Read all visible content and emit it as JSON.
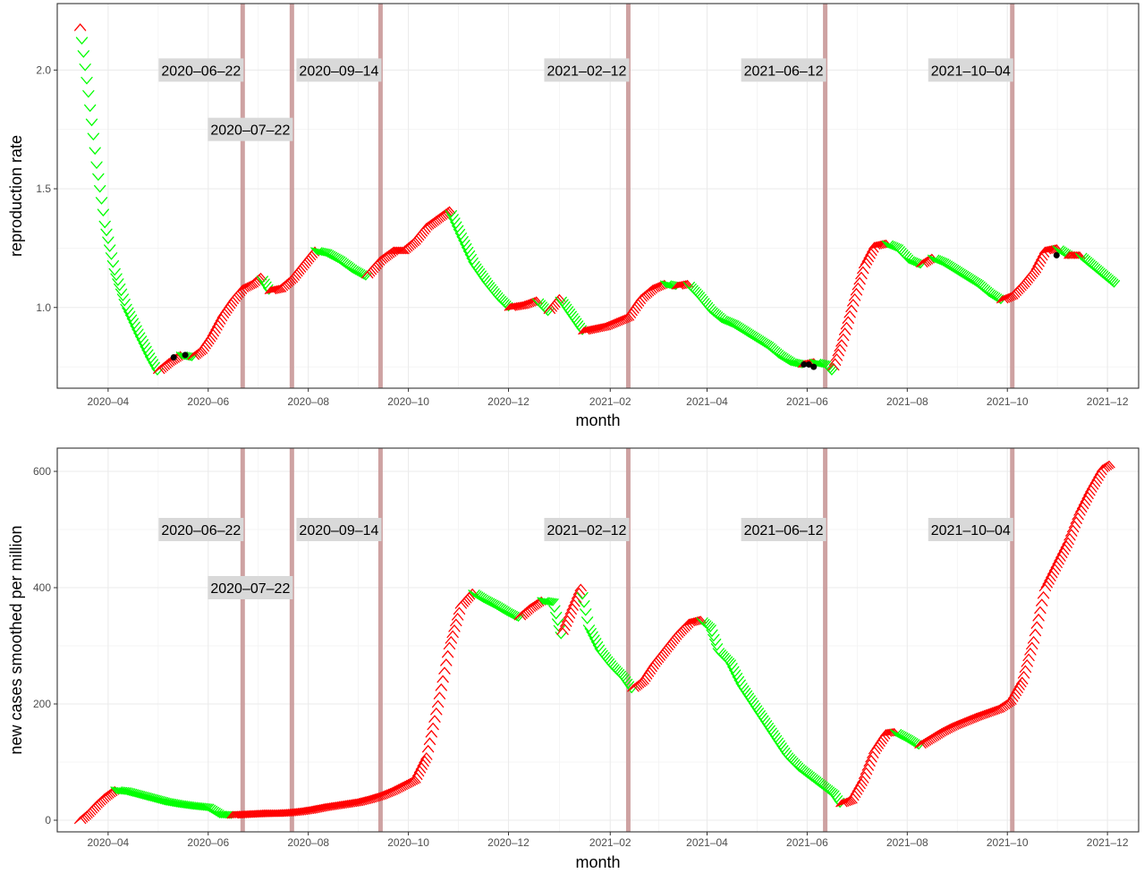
{
  "chart_data": [
    {
      "type": "line",
      "xlabel": "month",
      "ylabel": "reproduction rate",
      "ylim": [
        0.66,
        2.28
      ],
      "yticks": [
        1.0,
        1.5,
        2.0
      ],
      "ytick_labels": [
        "1.0",
        "1.5",
        "2.0"
      ],
      "xlim": [
        "2020-03-01",
        "2021-12-20"
      ],
      "xticks": [
        "2020-04-01",
        "2020-06-01",
        "2020-08-01",
        "2020-10-01",
        "2020-12-01",
        "2021-02-01",
        "2021-04-01",
        "2021-06-01",
        "2021-08-01",
        "2021-10-01",
        "2021-12-01"
      ],
      "xtick_labels": [
        "2020–04",
        "2020–06",
        "2020–08",
        "2020–10",
        "2020–12",
        "2021–02",
        "2021–04",
        "2021–06",
        "2021–08",
        "2021–10",
        "2021–12"
      ],
      "grid": true,
      "marker_legend": {
        "rising": "⋀ red",
        "falling": "⋁ green"
      },
      "series": [
        {
          "points": [
            [
              "2020-03-15",
              2.18
            ],
            [
              "2020-03-20",
              1.9
            ],
            [
              "2020-03-25",
              1.6
            ],
            [
              "2020-03-30",
              1.35
            ],
            [
              "2020-04-05",
              1.15
            ],
            [
              "2020-04-12",
              1.0
            ],
            [
              "2020-04-20",
              0.88
            ],
            [
              "2020-04-27",
              0.78
            ],
            [
              "2020-05-01",
              0.73
            ],
            [
              "2020-05-08",
              0.77
            ],
            [
              "2020-05-15",
              0.8
            ],
            [
              "2020-05-22",
              0.79
            ],
            [
              "2020-05-28",
              0.82
            ],
            [
              "2020-06-03",
              0.88
            ],
            [
              "2020-06-10",
              0.97
            ],
            [
              "2020-06-17",
              1.04
            ],
            [
              "2020-06-22",
              1.08
            ],
            [
              "2020-06-28",
              1.1
            ],
            [
              "2020-07-03",
              1.13
            ],
            [
              "2020-07-08",
              1.07
            ],
            [
              "2020-07-15",
              1.08
            ],
            [
              "2020-07-22",
              1.12
            ],
            [
              "2020-07-29",
              1.18
            ],
            [
              "2020-08-05",
              1.24
            ],
            [
              "2020-08-12",
              1.23
            ],
            [
              "2020-08-20",
              1.2
            ],
            [
              "2020-08-28",
              1.16
            ],
            [
              "2020-09-05",
              1.13
            ],
            [
              "2020-09-14",
              1.2
            ],
            [
              "2020-09-22",
              1.24
            ],
            [
              "2020-09-28",
              1.24
            ],
            [
              "2020-10-05",
              1.28
            ],
            [
              "2020-10-12",
              1.34
            ],
            [
              "2020-10-20",
              1.38
            ],
            [
              "2020-10-26",
              1.41
            ],
            [
              "2020-11-02",
              1.3
            ],
            [
              "2020-11-10",
              1.18
            ],
            [
              "2020-11-18",
              1.1
            ],
            [
              "2020-11-25",
              1.04
            ],
            [
              "2020-12-01",
              1.0
            ],
            [
              "2020-12-10",
              1.01
            ],
            [
              "2020-12-18",
              1.03
            ],
            [
              "2020-12-25",
              0.98
            ],
            [
              "2021-01-01",
              1.04
            ],
            [
              "2021-01-08",
              0.97
            ],
            [
              "2021-01-15",
              0.9
            ],
            [
              "2021-01-22",
              0.91
            ],
            [
              "2021-01-29",
              0.92
            ],
            [
              "2021-02-05",
              0.94
            ],
            [
              "2021-02-12",
              0.96
            ],
            [
              "2021-02-20",
              1.04
            ],
            [
              "2021-02-27",
              1.08
            ],
            [
              "2021-03-06",
              1.1
            ],
            [
              "2021-03-13",
              1.09
            ],
            [
              "2021-03-20",
              1.1
            ],
            [
              "2021-03-27",
              1.05
            ],
            [
              "2021-04-03",
              0.99
            ],
            [
              "2021-04-10",
              0.95
            ],
            [
              "2021-04-17",
              0.93
            ],
            [
              "2021-04-24",
              0.9
            ],
            [
              "2021-05-01",
              0.87
            ],
            [
              "2021-05-08",
              0.84
            ],
            [
              "2021-05-15",
              0.8
            ],
            [
              "2021-05-22",
              0.77
            ],
            [
              "2021-05-29",
              0.76
            ],
            [
              "2021-06-05",
              0.77
            ],
            [
              "2021-06-12",
              0.76
            ],
            [
              "2021-06-16",
              0.73
            ],
            [
              "2021-06-22",
              0.85
            ],
            [
              "2021-06-29",
              1.02
            ],
            [
              "2021-07-06",
              1.18
            ],
            [
              "2021-07-12",
              1.26
            ],
            [
              "2021-07-19",
              1.27
            ],
            [
              "2021-07-26",
              1.25
            ],
            [
              "2021-08-02",
              1.2
            ],
            [
              "2021-08-09",
              1.18
            ],
            [
              "2021-08-16",
              1.21
            ],
            [
              "2021-08-23",
              1.19
            ],
            [
              "2021-08-30",
              1.16
            ],
            [
              "2021-09-06",
              1.13
            ],
            [
              "2021-09-13",
              1.1
            ],
            [
              "2021-09-20",
              1.06
            ],
            [
              "2021-09-27",
              1.03
            ],
            [
              "2021-10-04",
              1.05
            ],
            [
              "2021-10-11",
              1.1
            ],
            [
              "2021-10-18",
              1.16
            ],
            [
              "2021-10-24",
              1.24
            ],
            [
              "2021-10-31",
              1.25
            ],
            [
              "2021-11-07",
              1.22
            ],
            [
              "2021-11-14",
              1.22
            ],
            [
              "2021-11-21",
              1.18
            ],
            [
              "2021-11-28",
              1.14
            ],
            [
              "2021-12-05",
              1.1
            ]
          ]
        }
      ],
      "highlight_points": [
        [
          "2020-05-11",
          0.79
        ],
        [
          "2020-05-18",
          0.8
        ],
        [
          "2021-05-30",
          0.76
        ],
        [
          "2021-06-02",
          0.76
        ],
        [
          "2021-06-05",
          0.75
        ],
        [
          "2021-10-31",
          1.22
        ]
      ],
      "vlines": [
        "2020-06-22",
        "2020-07-22",
        "2020-09-14",
        "2021-02-12",
        "2021-06-12",
        "2021-10-04"
      ],
      "annotations": [
        {
          "text": "2020–06–22",
          "date": "2020-06-22",
          "y": 2.0
        },
        {
          "text": "2020–07–22",
          "date": "2020-07-22",
          "y": 1.75
        },
        {
          "text": "2020–09–14",
          "date": "2020-09-14",
          "y": 2.0
        },
        {
          "text": "2021–02–12",
          "date": "2021-02-12",
          "y": 2.0
        },
        {
          "text": "2021–06–12",
          "date": "2021-06-12",
          "y": 2.0
        },
        {
          "text": "2021–10–04",
          "date": "2021-10-04",
          "y": 2.0
        }
      ],
      "colors": {
        "rising": "#ff0000",
        "falling": "#00ff00",
        "vline": "#c99898",
        "highlight": "#000000",
        "annotation_bg": "#d9d9d9"
      }
    },
    {
      "type": "line",
      "xlabel": "month",
      "ylabel": "new cases smoothed per million",
      "ylim": [
        -20,
        640
      ],
      "yticks": [
        0,
        200,
        400,
        600
      ],
      "ytick_labels": [
        "0",
        "200",
        "400",
        "600"
      ],
      "xlim": [
        "2020-03-01",
        "2021-12-20"
      ],
      "xticks": [
        "2020-04-01",
        "2020-06-01",
        "2020-08-01",
        "2020-10-01",
        "2020-12-01",
        "2021-02-01",
        "2021-04-01",
        "2021-06-01",
        "2021-08-01",
        "2021-10-01",
        "2021-12-01"
      ],
      "xtick_labels": [
        "2020–04",
        "2020–06",
        "2020–08",
        "2020–10",
        "2020–12",
        "2021–02",
        "2021–04",
        "2021–06",
        "2021–08",
        "2021–10",
        "2021–12"
      ],
      "grid": true,
      "series": [
        {
          "points": [
            [
              "2020-03-15",
              0
            ],
            [
              "2020-03-20",
              12
            ],
            [
              "2020-03-25",
              27
            ],
            [
              "2020-03-30",
              40
            ],
            [
              "2020-04-05",
              52
            ],
            [
              "2020-04-12",
              50
            ],
            [
              "2020-04-20",
              44
            ],
            [
              "2020-04-28",
              38
            ],
            [
              "2020-05-06",
              32
            ],
            [
              "2020-05-14",
              28
            ],
            [
              "2020-05-22",
              25
            ],
            [
              "2020-06-01",
              22
            ],
            [
              "2020-06-08",
              10
            ],
            [
              "2020-06-15",
              9
            ],
            [
              "2020-06-22",
              10
            ],
            [
              "2020-06-29",
              11
            ],
            [
              "2020-07-06",
              12
            ],
            [
              "2020-07-13",
              12
            ],
            [
              "2020-07-20",
              13
            ],
            [
              "2020-07-27",
              15
            ],
            [
              "2020-08-03",
              18
            ],
            [
              "2020-08-10",
              22
            ],
            [
              "2020-08-17",
              25
            ],
            [
              "2020-08-24",
              28
            ],
            [
              "2020-08-31",
              31
            ],
            [
              "2020-09-07",
              36
            ],
            [
              "2020-09-14",
              42
            ],
            [
              "2020-09-21",
              50
            ],
            [
              "2020-09-28",
              60
            ],
            [
              "2020-10-05",
              70
            ],
            [
              "2020-10-12",
              110
            ],
            [
              "2020-10-19",
              200
            ],
            [
              "2020-10-26",
              300
            ],
            [
              "2020-11-02",
              370
            ],
            [
              "2020-11-09",
              392
            ],
            [
              "2020-11-16",
              380
            ],
            [
              "2020-11-23",
              370
            ],
            [
              "2020-11-30",
              358
            ],
            [
              "2020-12-07",
              348
            ],
            [
              "2020-12-14",
              365
            ],
            [
              "2020-12-21",
              378
            ],
            [
              "2020-12-28",
              375
            ],
            [
              "2021-01-02",
              318
            ],
            [
              "2021-01-08",
              360
            ],
            [
              "2021-01-14",
              400
            ],
            [
              "2021-01-19",
              330
            ],
            [
              "2021-01-26",
              290
            ],
            [
              "2021-02-02",
              265
            ],
            [
              "2021-02-09",
              245
            ],
            [
              "2021-02-14",
              225
            ],
            [
              "2021-02-21",
              240
            ],
            [
              "2021-02-28",
              270
            ],
            [
              "2021-03-07",
              295
            ],
            [
              "2021-03-14",
              320
            ],
            [
              "2021-03-21",
              340
            ],
            [
              "2021-03-28",
              345
            ],
            [
              "2021-04-03",
              330
            ],
            [
              "2021-04-08",
              290
            ],
            [
              "2021-04-15",
              270
            ],
            [
              "2021-04-22",
              230
            ],
            [
              "2021-04-29",
              200
            ],
            [
              "2021-05-06",
              170
            ],
            [
              "2021-05-13",
              140
            ],
            [
              "2021-05-20",
              110
            ],
            [
              "2021-05-27",
              90
            ],
            [
              "2021-06-03",
              75
            ],
            [
              "2021-06-10",
              60
            ],
            [
              "2021-06-17",
              45
            ],
            [
              "2021-06-21",
              28
            ],
            [
              "2021-06-28",
              35
            ],
            [
              "2021-07-05",
              70
            ],
            [
              "2021-07-12",
              120
            ],
            [
              "2021-07-19",
              150
            ],
            [
              "2021-07-24",
              152
            ],
            [
              "2021-08-01",
              140
            ],
            [
              "2021-08-08",
              128
            ],
            [
              "2021-08-15",
              140
            ],
            [
              "2021-08-22",
              152
            ],
            [
              "2021-08-29",
              162
            ],
            [
              "2021-09-05",
              170
            ],
            [
              "2021-09-12",
              178
            ],
            [
              "2021-09-19",
              185
            ],
            [
              "2021-09-26",
              192
            ],
            [
              "2021-10-03",
              205
            ],
            [
              "2021-10-10",
              240
            ],
            [
              "2021-10-17",
              310
            ],
            [
              "2021-10-24",
              400
            ],
            [
              "2021-10-31",
              440
            ],
            [
              "2021-11-07",
              480
            ],
            [
              "2021-11-14",
              530
            ],
            [
              "2021-11-21",
              570
            ],
            [
              "2021-11-28",
              605
            ],
            [
              "2021-12-02",
              612
            ]
          ]
        }
      ],
      "vlines": [
        "2020-06-22",
        "2020-07-22",
        "2020-09-14",
        "2021-02-12",
        "2021-06-12",
        "2021-10-04"
      ],
      "annotations": [
        {
          "text": "2020–06–22",
          "date": "2020-06-22",
          "y": 500
        },
        {
          "text": "2020–07–22",
          "date": "2020-07-22",
          "y": 400
        },
        {
          "text": "2020–09–14",
          "date": "2020-09-14",
          "y": 500
        },
        {
          "text": "2021–02–12",
          "date": "2021-02-12",
          "y": 500
        },
        {
          "text": "2021–06–12",
          "date": "2021-06-12",
          "y": 500
        },
        {
          "text": "2021–10–04",
          "date": "2021-10-04",
          "y": 500
        }
      ],
      "colors": {
        "rising": "#ff0000",
        "falling": "#00ff00",
        "vline": "#c99898",
        "annotation_bg": "#d9d9d9"
      }
    }
  ]
}
